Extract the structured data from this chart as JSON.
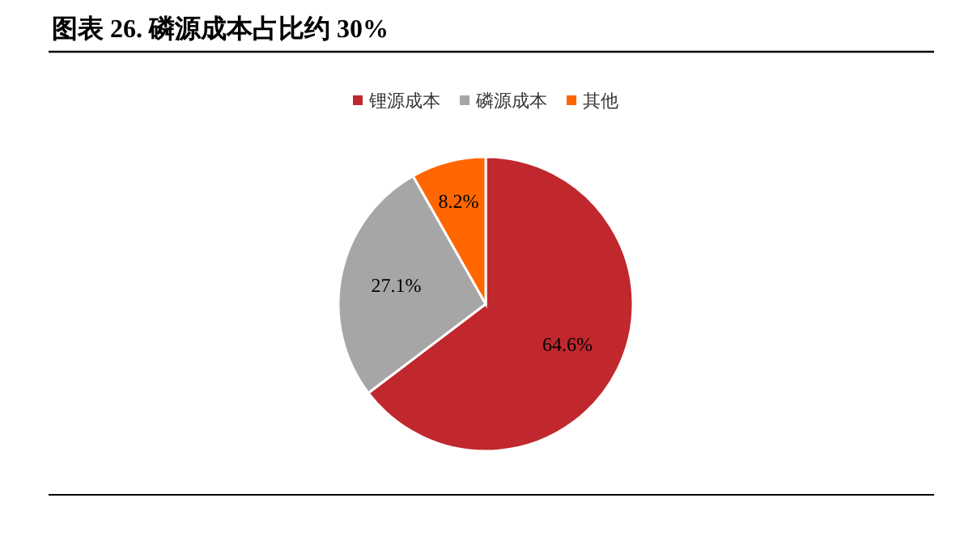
{
  "chart_data": {
    "type": "pie",
    "title": "图表 26. 磷源成本占比约 30%",
    "categories": [
      "锂源成本",
      "磷源成本",
      "其他"
    ],
    "values": [
      64.6,
      27.1,
      8.2
    ],
    "colors": [
      "#c0282d",
      "#a6a6a6",
      "#ff6600"
    ],
    "value_labels": [
      "64.6%",
      "27.1%",
      "8.2%"
    ],
    "legend": "top"
  }
}
